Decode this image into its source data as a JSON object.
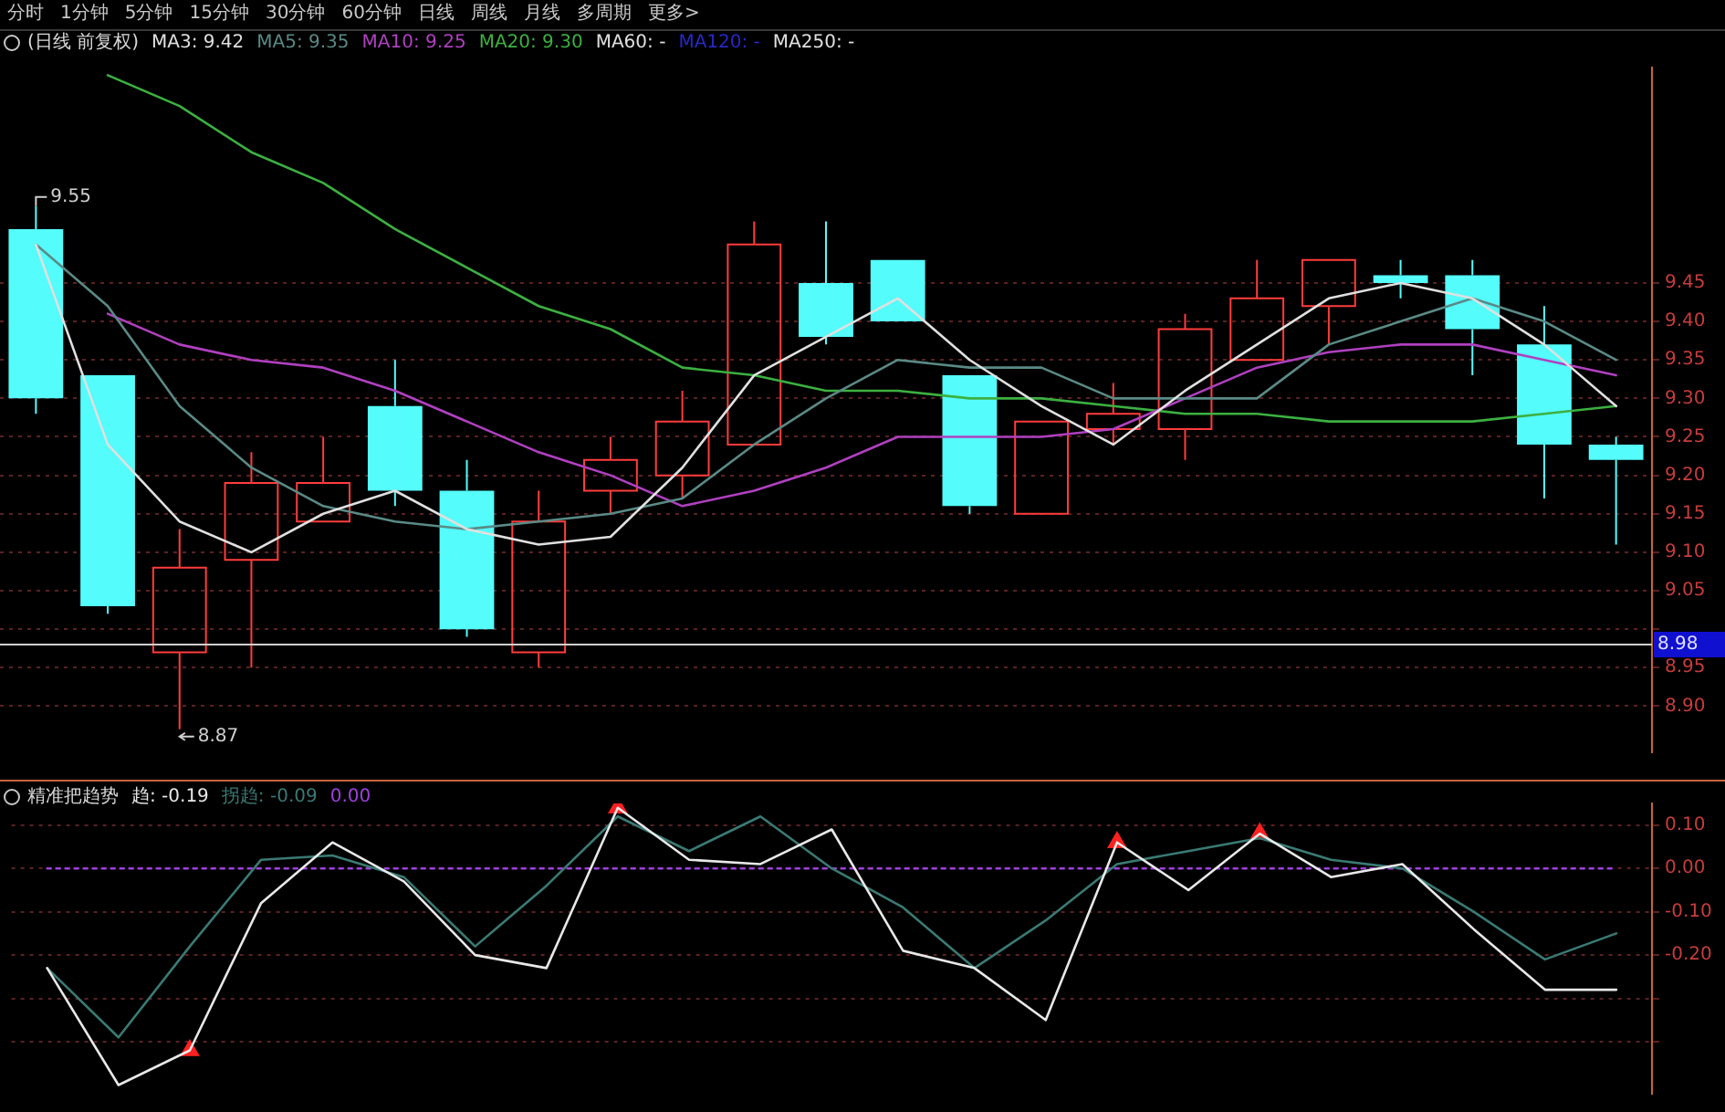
{
  "chart_data": [
    {
      "type": "candlestick",
      "title": "(日线 前复权)",
      "categories": [
        null,
        null,
        null,
        null,
        null,
        null,
        null,
        null,
        null,
        null,
        null,
        null,
        null,
        null,
        null,
        null,
        null,
        null,
        null,
        null,
        null,
        null,
        null
      ],
      "ohlc": [
        [
          9.52,
          9.55,
          9.28,
          9.3
        ],
        [
          9.33,
          9.33,
          9.02,
          9.03
        ],
        [
          8.97,
          9.13,
          8.87,
          9.08
        ],
        [
          9.09,
          9.23,
          8.95,
          9.19
        ],
        [
          9.14,
          9.25,
          9.14,
          9.19
        ],
        [
          9.29,
          9.35,
          9.16,
          9.18
        ],
        [
          9.18,
          9.22,
          8.99,
          9.0
        ],
        [
          8.97,
          9.18,
          8.95,
          9.14
        ],
        [
          9.18,
          9.25,
          9.15,
          9.22
        ],
        [
          9.2,
          9.31,
          9.17,
          9.27
        ],
        [
          9.24,
          9.53,
          9.24,
          9.5
        ],
        [
          9.45,
          9.53,
          9.37,
          9.38
        ],
        [
          9.48,
          9.48,
          9.4,
          9.4
        ],
        [
          9.33,
          9.33,
          9.15,
          9.16
        ],
        [
          9.15,
          9.27,
          9.15,
          9.27
        ],
        [
          9.26,
          9.32,
          9.24,
          9.28
        ],
        [
          9.26,
          9.41,
          9.22,
          9.39
        ],
        [
          9.35,
          9.48,
          9.35,
          9.43
        ],
        [
          9.42,
          9.48,
          9.37,
          9.48
        ],
        [
          9.46,
          9.48,
          9.43,
          9.45
        ],
        [
          9.46,
          9.48,
          9.33,
          9.39
        ],
        [
          9.37,
          9.42,
          9.17,
          9.24
        ],
        [
          9.24,
          9.25,
          9.11,
          9.22
        ]
      ],
      "colors": [
        "#54fcfc",
        "#54fcfc",
        "#ff3c3c",
        "#ff3c3c",
        "#ff3c3c",
        "#54fcfc",
        "#54fcfc",
        "#ff3c3c",
        "#ff3c3c",
        "#ff3c3c",
        "#ff3c3c",
        "#54fcfc",
        "#54fcfc",
        "#54fcfc",
        "#ff3c3c",
        "#ff3c3c",
        "#ff3c3c",
        "#ff3c3c",
        "#ff3c3c",
        "#54fcfc",
        "#54fcfc",
        "#54fcfc",
        "#54fcfc"
      ],
      "series": [
        {
          "name": "MA3: 9.42",
          "type": "line",
          "color": "#e0e0e0",
          "values": [
            9.5,
            9.24,
            9.14,
            9.1,
            9.15,
            9.18,
            9.13,
            9.11,
            9.12,
            9.21,
            9.33,
            9.38,
            9.43,
            9.35,
            9.29,
            9.24,
            9.31,
            9.37,
            9.43,
            9.45,
            9.43,
            9.37,
            9.29
          ]
        },
        {
          "name": "MA5: 9.35",
          "type": "line",
          "color": "#5a8a86",
          "values": [
            9.5,
            9.42,
            9.29,
            9.21,
            9.16,
            9.14,
            9.13,
            9.14,
            9.15,
            9.17,
            9.24,
            9.3,
            9.35,
            9.34,
            9.34,
            9.3,
            9.3,
            9.3,
            9.37,
            9.4,
            9.43,
            9.4,
            9.35
          ]
        },
        {
          "name": "MA10: 9.25",
          "type": "line",
          "color": "#b040c0",
          "values": [
            null,
            9.41,
            9.37,
            9.35,
            9.34,
            9.31,
            9.27,
            9.23,
            9.2,
            9.16,
            9.18,
            9.21,
            9.25,
            9.25,
            9.25,
            9.26,
            9.3,
            9.34,
            9.36,
            9.37,
            9.37,
            9.35,
            9.33
          ]
        },
        {
          "name": "MA20: 9.30",
          "type": "line",
          "color": "#3cb040",
          "values": [
            null,
            9.72,
            9.68,
            9.62,
            9.58,
            9.52,
            9.47,
            9.42,
            9.39,
            9.34,
            9.33,
            9.31,
            9.31,
            9.3,
            9.3,
            9.29,
            9.28,
            9.28,
            9.27,
            9.27,
            9.27,
            9.28,
            9.29
          ]
        },
        {
          "name": "MA60: -",
          "type": "line",
          "color": "#e0e0e0",
          "values": [
            null,
            null,
            null,
            null,
            null,
            null,
            null,
            null,
            null,
            null,
            null,
            null,
            null,
            null,
            null,
            null,
            null,
            null,
            null,
            null,
            null,
            null,
            null
          ]
        },
        {
          "name": "MA120: -",
          "type": "line",
          "color": "#2828c8",
          "values": [
            null,
            null,
            null,
            null,
            null,
            null,
            null,
            null,
            null,
            null,
            null,
            null,
            null,
            null,
            null,
            null,
            null,
            null,
            null,
            null,
            null,
            null,
            null
          ]
        },
        {
          "name": "MA250: -",
          "type": "line",
          "color": "#e0e0e0",
          "values": [
            null,
            null,
            null,
            null,
            null,
            null,
            null,
            null,
            null,
            null,
            null,
            null,
            null,
            null,
            null,
            null,
            null,
            null,
            null,
            null,
            null,
            null,
            null
          ]
        }
      ],
      "ylim": [
        8.84,
        9.73
      ],
      "yticks": [
        {
          "value": 8.9,
          "label": "8.90"
        },
        {
          "value": 8.95,
          "label": "8.95"
        },
        {
          "value": 9.0,
          "label": null
        },
        {
          "value": 9.05,
          "label": "9.05"
        },
        {
          "value": 9.1,
          "label": "9.10"
        },
        {
          "value": 9.15,
          "label": "9.15"
        },
        {
          "value": 9.2,
          "label": "9.20"
        },
        {
          "value": 9.25,
          "label": "9.25"
        },
        {
          "value": 9.3,
          "label": "9.30"
        },
        {
          "value": 9.35,
          "label": "9.35"
        },
        {
          "value": 9.4,
          "label": "9.40"
        },
        {
          "value": 9.45,
          "label": "9.45"
        }
      ],
      "grid": "y",
      "legend": "top",
      "tick_labels": "y",
      "marker": "none",
      "ref_lines": [
        {
          "axis": "y",
          "value": 8.98,
          "label": "8.98",
          "color": "#d0d0d0"
        }
      ],
      "annotations": [
        "9.55",
        "8.87",
        "分时",
        "1分钟",
        "5分钟",
        "15分钟",
        "30分钟",
        "60分钟",
        "日线",
        "周线",
        "月线",
        "多周期",
        "更多>"
      ]
    },
    {
      "type": "line",
      "title": "精准把趋势",
      "categories": [
        null,
        null,
        null,
        null,
        null,
        null,
        null,
        null,
        null,
        null,
        null,
        null,
        null,
        null,
        null,
        null,
        null,
        null,
        null,
        null,
        null,
        null,
        null
      ],
      "series": [
        {
          "name": "趋: -0.19",
          "type": "line",
          "color": "#e8e8e8",
          "values": [
            -0.23,
            -0.5,
            -0.42,
            -0.08,
            0.06,
            -0.03,
            -0.2,
            -0.23,
            0.14,
            0.02,
            0.01,
            0.09,
            -0.19,
            -0.23,
            -0.35,
            0.06,
            -0.05,
            0.08,
            -0.02,
            0.01,
            -0.14,
            -0.28,
            -0.28
          ]
        },
        {
          "name": "拐趋: -0.09",
          "type": "line",
          "color": "#3a7a74",
          "values": [
            -0.23,
            -0.39,
            -0.18,
            0.02,
            0.03,
            -0.02,
            -0.18,
            -0.04,
            0.12,
            0.04,
            0.12,
            0.0,
            -0.09,
            -0.23,
            -0.12,
            0.01,
            0.04,
            0.07,
            0.02,
            0.0,
            -0.1,
            -0.21,
            -0.15
          ]
        },
        {
          "name": "0.00",
          "type": "line",
          "color": "#a040e0",
          "line_style": "dotted",
          "values": [
            0,
            0,
            0,
            0,
            0,
            0,
            0,
            0,
            0,
            0,
            0,
            0,
            0,
            0,
            0,
            0,
            0,
            0,
            0,
            0,
            0,
            0,
            0
          ]
        },
        {
          "type": "scatter",
          "marker": "triangle",
          "color": "#ff2020",
          "values": [
            null,
            null,
            -0.42,
            null,
            null,
            null,
            null,
            null,
            0.14,
            null,
            null,
            null,
            null,
            null,
            null,
            0.06,
            null,
            0.08,
            null,
            null,
            null,
            null,
            null
          ]
        }
      ],
      "ylim": [
        -0.52,
        0.15
      ],
      "yticks": [
        {
          "value": -0.4,
          "label": null
        },
        {
          "value": -0.3,
          "label": null
        },
        {
          "value": -0.2,
          "label": "-0.20"
        },
        {
          "value": -0.1,
          "label": "-0.10"
        },
        {
          "value": 0,
          "label": "0.00"
        },
        {
          "value": 0.1,
          "label": "0.10"
        }
      ],
      "grid": "y",
      "legend": "top left",
      "tick_labels": "y",
      "marker": "none"
    }
  ]
}
